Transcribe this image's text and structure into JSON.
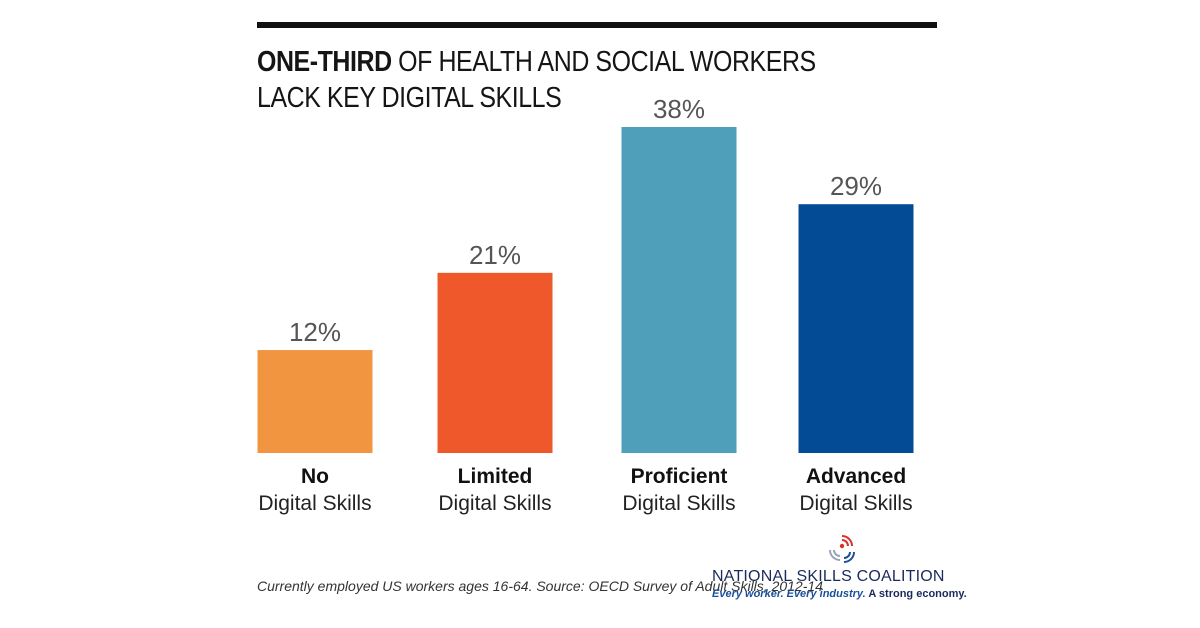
{
  "title": {
    "bold_part": "ONE-THIRD",
    "rest_line1": " OF HEALTH AND SOCIAL WORKERS",
    "line2": "LACK KEY DIGITAL SKILLS"
  },
  "chart_data": {
    "type": "bar",
    "categories": [
      {
        "bold": "No",
        "regular": "Digital Skills"
      },
      {
        "bold": "Limited",
        "regular": "Digital Skills"
      },
      {
        "bold": "Proficient",
        "regular": "Digital Skills"
      },
      {
        "bold": "Advanced",
        "regular": "Digital Skills"
      }
    ],
    "values": [
      12,
      21,
      38,
      29
    ],
    "value_labels": [
      "12%",
      "21%",
      "38%",
      "29%"
    ],
    "colors": [
      "#f29540",
      "#ee582a",
      "#4f9fba",
      "#034c95"
    ],
    "ylim": [
      0,
      38
    ],
    "grid": false
  },
  "source_note": "Currently employed US workers ages 16-64. Source: OECD Survey of Adult Skills, 2012-14",
  "logo": {
    "name": "NATIONAL SKILLS COALITION",
    "tagline_italic": "Every worker. Every industry.",
    "tagline_tail": " A strong economy.",
    "icon": "signal-waves-icon"
  }
}
